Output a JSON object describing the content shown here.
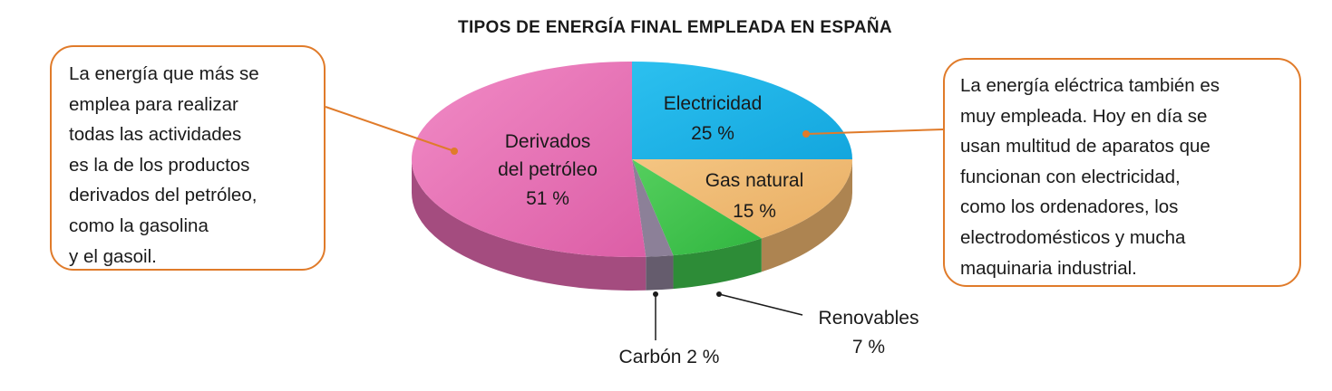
{
  "title": "TIPOS DE ENERGÍA FINAL EMPLEADA EN ESPAÑA",
  "chart_data": {
    "type": "pie",
    "title": "TIPOS DE ENERGÍA FINAL EMPLEADA EN ESPAÑA",
    "slices": [
      {
        "name": "Electricidad",
        "value": 25,
        "label_lines": [
          "Electricidad",
          "25 %"
        ],
        "color": "#19b3e6"
      },
      {
        "name": "Gas natural",
        "value": 15,
        "label_lines": [
          "Gas natural",
          "15 %"
        ],
        "color": "#f0b870"
      },
      {
        "name": "Renovables",
        "value": 7,
        "label_lines": [
          "Renovables",
          "7 %"
        ],
        "color": "#3fc24d"
      },
      {
        "name": "Carbón",
        "value": 2,
        "label_lines": [
          "Carbón 2 %"
        ],
        "color": "#8c8098"
      },
      {
        "name": "Derivados del petróleo",
        "value": 51,
        "label_lines": [
          "Derivados",
          "del petróleo",
          "51 %"
        ],
        "color": "#e46ab0"
      }
    ]
  },
  "callouts": {
    "left": {
      "lines": [
        "La energía que más se",
        "emplea para realizar",
        "todas las actividades",
        "es la de los productos",
        "derivados del petróleo,",
        "como la gasolina",
        "y el gasoil."
      ]
    },
    "right": {
      "lines": [
        "La energía eléctrica también es",
        "muy empleada. Hoy en día se",
        "usan multitud de aparatos que",
        "funcionan con electricidad,",
        "como los ordenadores, los",
        "electrodomésticos y mucha",
        "maquinaria industrial."
      ]
    }
  },
  "colors": {
    "callout_border": "#e07b2a",
    "leader_line": "#e07b2a",
    "text": "#1a1a1a"
  }
}
